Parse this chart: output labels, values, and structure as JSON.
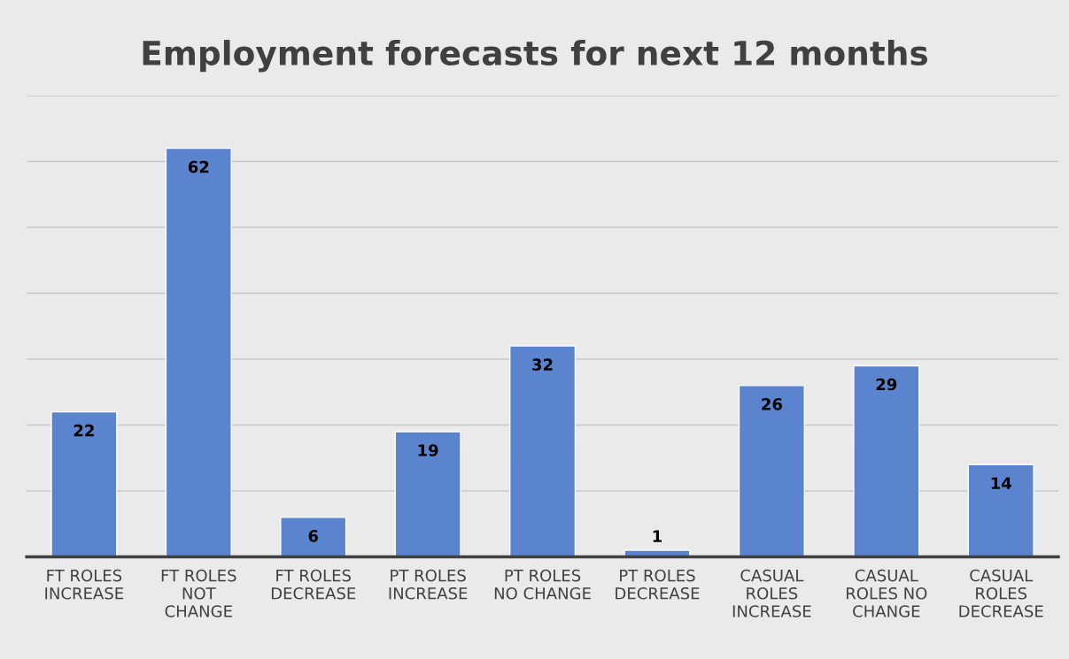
{
  "chart_data": {
    "type": "bar",
    "title": "Employment forecasts for next 12 months",
    "categories": [
      "FT ROLES\nINCREASE",
      "FT ROLES\nNOT\nCHANGE",
      "FT ROLES\nDECREASE",
      "PT ROLES\nINCREASE",
      "PT ROLES\nNO CHANGE",
      "PT ROLES\nDECREASE",
      "CASUAL\nROLES\nINCREASE",
      "CASUAL\nROLES NO\nCHANGE",
      "CASUAL\nROLES\nDECREASE"
    ],
    "values": [
      22,
      62,
      6,
      19,
      32,
      1,
      26,
      29,
      14
    ],
    "color": "#5b84cf",
    "data_labels": true,
    "ylim": [
      0,
      70
    ],
    "yticks": [
      {
        "value": 0,
        "label": null
      },
      {
        "value": 10,
        "label": null
      },
      {
        "value": 20,
        "label": null
      },
      {
        "value": 30,
        "label": null
      },
      {
        "value": 40,
        "label": null
      },
      {
        "value": 50,
        "label": null
      },
      {
        "value": 60,
        "label": null
      },
      {
        "value": 70,
        "label": null
      }
    ],
    "grid": "y",
    "tick_labels": "x"
  }
}
